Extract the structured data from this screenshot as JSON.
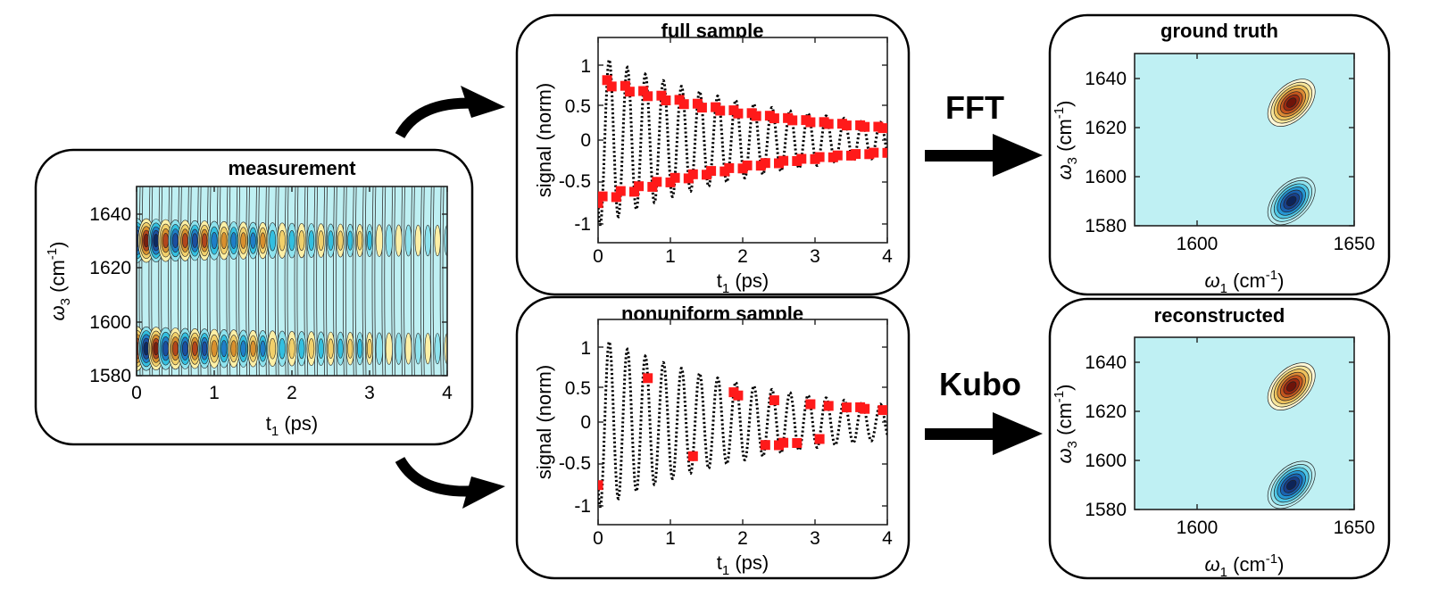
{
  "colors": {
    "background": "#bff0f3",
    "positive_peak": "#b32b12",
    "negative_peak": "#1a4fa0",
    "sample_marker": "#ff1a1a",
    "trace": "#000000"
  },
  "panels": {
    "measurement": {
      "title": "measurement",
      "xlabel": {
        "main": "t",
        "sub": "1",
        "units": " (ps)"
      },
      "ylabel": {
        "main": "ω",
        "sub": "3",
        "units": " (cm",
        "sup": "-1",
        "close": ")"
      },
      "xticks": [
        "0",
        "1",
        "2",
        "3",
        "4"
      ],
      "yticks": [
        "1580",
        "1600",
        "1620",
        "1640"
      ]
    },
    "full_sample": {
      "title": "full sample",
      "xlabel": {
        "main": "t",
        "sub": "1",
        "units": " (ps)"
      },
      "ylabel": "signal (norm)",
      "xticks": [
        "0",
        "1",
        "2",
        "3",
        "4"
      ],
      "yticks": [
        "-1",
        "-0.5",
        "0",
        "0.5",
        "1"
      ]
    },
    "nonuniform_sample": {
      "title": "nonuniform sample",
      "xlabel": {
        "main": "t",
        "sub": "1",
        "units": " (ps)"
      },
      "ylabel": "signal (norm)",
      "xticks": [
        "0",
        "1",
        "2",
        "3",
        "4"
      ],
      "yticks": [
        "-1",
        "-0.5",
        "0",
        "0.5",
        "1"
      ]
    },
    "ground_truth": {
      "title": "ground truth",
      "xlabel": {
        "main": "ω",
        "sub": "1",
        "units": " (cm",
        "sup": "-1",
        "close": ")"
      },
      "ylabel": {
        "main": "ω",
        "sub": "3",
        "units": " (cm",
        "sup": "-1",
        "close": ")"
      },
      "xticks": [
        "1600",
        "1650"
      ],
      "yticks": [
        "1580",
        "1600",
        "1620",
        "1640"
      ]
    },
    "reconstructed": {
      "title": "reconstructed",
      "xlabel": {
        "main": "ω",
        "sub": "1",
        "units": " (cm",
        "sup": "-1",
        "close": ")"
      },
      "ylabel": {
        "main": "ω",
        "sub": "3",
        "units": " (cm",
        "sup": "-1",
        "close": ")"
      },
      "xticks": [
        "1600",
        "1650"
      ],
      "yticks": [
        "1580",
        "1600",
        "1620",
        "1640"
      ]
    }
  },
  "operations": {
    "top": "FFT",
    "bottom": "Kubo"
  },
  "chart_data": [
    {
      "type": "heatmap",
      "title": "measurement",
      "x_range": [
        0,
        4
      ],
      "y_range": [
        1580,
        1650
      ],
      "peaks_cm-1": [
        1630,
        1590
      ],
      "oscillation_period_ps": 0.25,
      "decay_time_ps": 2.5
    },
    {
      "type": "scatter",
      "title": "full sample",
      "x_range": [
        0,
        4
      ],
      "y_range": [
        -1.2,
        1.2
      ],
      "signal_model": {
        "frequency_thz": 4.0,
        "decay_time_ps": 2.5
      },
      "samples_t_ps": [
        0.0,
        0.0625,
        0.125,
        0.1875,
        0.25,
        0.3125,
        0.375,
        0.4375,
        0.5,
        0.5625,
        0.625,
        0.6875,
        0.75,
        0.8125,
        0.875,
        0.9375,
        1.0,
        1.0625,
        1.125,
        1.1875,
        1.25,
        1.3125,
        1.375,
        1.4375,
        1.5,
        1.5625,
        1.625,
        1.6875,
        1.75,
        1.8125,
        1.875,
        1.9375,
        2.0,
        2.0625,
        2.125,
        2.1875,
        2.25,
        2.3125,
        2.375,
        2.4375,
        2.5,
        2.5625,
        2.625,
        2.6875,
        2.75,
        2.8125,
        2.875,
        2.9375,
        3.0,
        3.0625,
        3.125,
        3.1875,
        3.25,
        3.3125,
        3.375,
        3.4375,
        3.5,
        3.5625,
        3.625,
        3.6875,
        3.75,
        3.8125,
        3.875,
        3.9375,
        4.0
      ]
    },
    {
      "type": "scatter",
      "title": "nonuniform sample",
      "x_range": [
        0,
        4
      ],
      "y_range": [
        -1.2,
        1.2
      ],
      "signal_model": {
        "frequency_thz": 4.0,
        "decay_time_ps": 2.5
      },
      "samples_t_ps": [
        0.0,
        0.6875,
        1.3125,
        1.875,
        1.9375,
        2.3125,
        2.4375,
        2.5,
        2.5625,
        2.75,
        2.9375,
        3.0625,
        3.1875,
        3.4375,
        3.625,
        3.6875,
        3.9375
      ]
    },
    {
      "type": "heatmap",
      "title": "ground truth",
      "x_range": [
        1580,
        1650
      ],
      "y_range": [
        1580,
        1650
      ],
      "peaks": [
        {
          "w1": 1630,
          "w3": 1630,
          "sign": 1
        },
        {
          "w1": 1630,
          "w3": 1590,
          "sign": -1
        }
      ]
    },
    {
      "type": "heatmap",
      "title": "reconstructed",
      "x_range": [
        1580,
        1650
      ],
      "y_range": [
        1580,
        1650
      ],
      "peaks": [
        {
          "w1": 1630,
          "w3": 1630,
          "sign": 1
        },
        {
          "w1": 1630,
          "w3": 1590,
          "sign": -1
        }
      ]
    }
  ]
}
